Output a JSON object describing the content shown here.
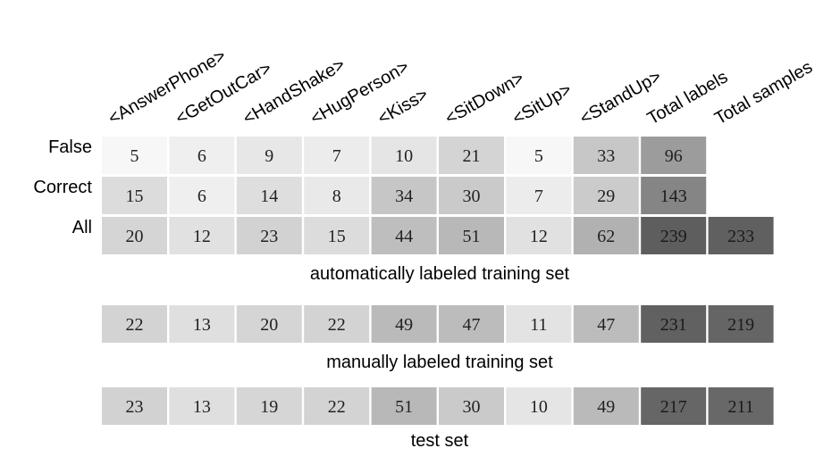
{
  "chart_data": {
    "type": "table",
    "columns": [
      "<AnswerPhone>",
      "<GetOutCar>",
      "<HandShake>",
      "<HugPerson>",
      "<Kiss>",
      "<SitDown>",
      "<SitUp>",
      "<StandUp>",
      "Total labels",
      "Total samples"
    ],
    "color_scale": {
      "low": "#f7f7f7",
      "high": "#5e5e5e",
      "min": 5,
      "max": 239
    },
    "tables": [
      {
        "caption": "automatically labeled training set",
        "rows": [
          {
            "label": "False",
            "values": [
              5,
              6,
              9,
              7,
              10,
              21,
              5,
              33,
              96,
              null
            ]
          },
          {
            "label": "Correct",
            "values": [
              15,
              6,
              14,
              8,
              34,
              30,
              7,
              29,
              143,
              null
            ]
          },
          {
            "label": "All",
            "values": [
              20,
              12,
              23,
              15,
              44,
              51,
              12,
              62,
              239,
              233
            ]
          }
        ]
      },
      {
        "caption": "manually labeled training set",
        "rows": [
          {
            "label": "",
            "values": [
              22,
              13,
              20,
              22,
              49,
              47,
              11,
              47,
              231,
              219
            ]
          }
        ]
      },
      {
        "caption": "test set",
        "rows": [
          {
            "label": "",
            "values": [
              23,
              13,
              19,
              22,
              51,
              30,
              10,
              49,
              217,
              211
            ]
          }
        ]
      }
    ]
  }
}
